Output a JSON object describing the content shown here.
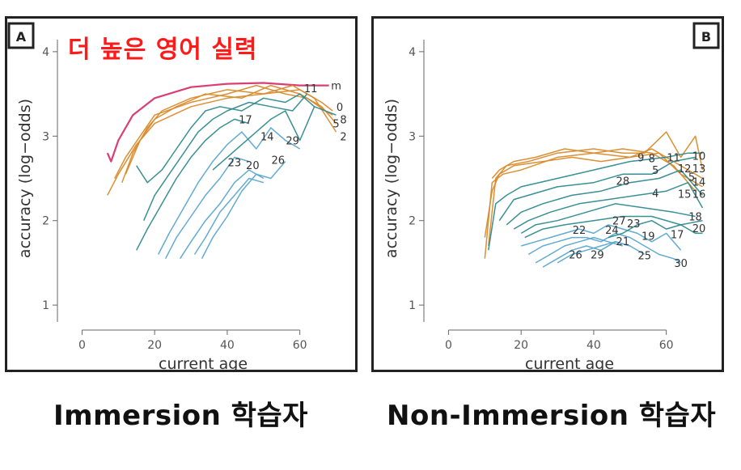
{
  "captions": {
    "left": "Immersion 학습자",
    "right": "Non-Immersion 학습자"
  },
  "annotation": "더 높은 영어 실력",
  "colors": {
    "orange": "#d98a2b",
    "teal": "#2e8a8f",
    "lightblue": "#5aa6cf",
    "red": "#d8346b",
    "axis": "#666666",
    "label": "#333333"
  },
  "chart_data": [
    {
      "type": "line",
      "panel_label": "A",
      "xlabel": "current age",
      "ylabel": "accuracy (log−odds)",
      "xlim": [
        -5,
        73
      ],
      "ylim": [
        0.8,
        4.2
      ],
      "xticks": [
        0,
        20,
        40,
        60
      ],
      "yticks": [
        1,
        2,
        3,
        4
      ],
      "series": [
        {
          "group": "red",
          "x": [
            7,
            8,
            10,
            14,
            20,
            30,
            40,
            50,
            60,
            68
          ],
          "y": [
            2.8,
            2.7,
            2.95,
            3.25,
            3.45,
            3.58,
            3.62,
            3.63,
            3.6,
            3.6
          ]
        },
        {
          "group": "orange",
          "x": [
            7,
            10,
            15,
            20,
            30,
            40,
            50,
            60,
            66,
            69
          ],
          "y": [
            2.3,
            2.55,
            2.9,
            3.15,
            3.35,
            3.45,
            3.5,
            3.55,
            3.4,
            3.3
          ]
        },
        {
          "group": "orange",
          "x": [
            9,
            12,
            16,
            20,
            30,
            40,
            48,
            56,
            62,
            67,
            69
          ],
          "y": [
            2.5,
            2.75,
            3.0,
            3.25,
            3.4,
            3.5,
            3.6,
            3.5,
            3.45,
            3.3,
            3.25
          ]
        },
        {
          "group": "orange",
          "x": [
            11,
            14,
            18,
            22,
            30,
            40,
            50,
            58,
            64,
            70
          ],
          "y": [
            2.45,
            2.8,
            3.1,
            3.3,
            3.45,
            3.55,
            3.5,
            3.6,
            3.45,
            3.05
          ]
        },
        {
          "group": "orange",
          "x": [
            12,
            16,
            20,
            26,
            34,
            44,
            52,
            60,
            66,
            70
          ],
          "y": [
            2.55,
            2.95,
            3.2,
            3.35,
            3.5,
            3.45,
            3.6,
            3.5,
            3.35,
            3.15
          ]
        },
        {
          "group": "teal",
          "x": [
            15,
            18,
            22,
            26,
            30,
            34,
            38,
            44,
            50,
            56,
            60,
            64,
            70
          ],
          "y": [
            2.65,
            2.45,
            2.6,
            2.85,
            3.1,
            3.3,
            3.35,
            3.3,
            3.45,
            3.4,
            3.5,
            3.35,
            3.25
          ]
        },
        {
          "group": "teal",
          "x": [
            17,
            20,
            24,
            28,
            32,
            36,
            40,
            46,
            52,
            58,
            62
          ],
          "y": [
            2.0,
            2.3,
            2.55,
            2.8,
            3.05,
            3.2,
            3.3,
            3.4,
            3.35,
            3.3,
            3.5
          ]
        },
        {
          "group": "teal",
          "x": [
            15,
            18,
            22,
            26,
            30,
            34,
            38,
            42,
            46
          ],
          "y": [
            1.65,
            1.9,
            2.2,
            2.5,
            2.75,
            2.95,
            3.1,
            3.2,
            3.15
          ]
        },
        {
          "group": "lightblue",
          "x": [
            21,
            24,
            28,
            32,
            36,
            40,
            44,
            48,
            52,
            56,
            60
          ],
          "y": [
            1.6,
            1.85,
            2.15,
            2.45,
            2.7,
            2.9,
            3.05,
            2.85,
            3.1,
            2.95,
            2.85
          ]
        },
        {
          "group": "lightblue",
          "x": [
            23,
            26,
            30,
            34,
            38,
            42,
            46
          ],
          "y": [
            1.55,
            1.8,
            2.05,
            2.3,
            2.5,
            2.75,
            2.7
          ]
        },
        {
          "group": "lightblue",
          "x": [
            27,
            30,
            34,
            38,
            42,
            46,
            50
          ],
          "y": [
            1.55,
            1.75,
            2.0,
            2.2,
            2.45,
            2.6,
            2.5
          ]
        },
        {
          "group": "lightblue",
          "x": [
            31,
            34,
            38,
            42,
            46,
            50
          ],
          "y": [
            1.6,
            1.8,
            2.1,
            2.3,
            2.5,
            2.45
          ]
        },
        {
          "group": "lightblue",
          "x": [
            33,
            36,
            40,
            44,
            48,
            52,
            56
          ],
          "y": [
            1.55,
            1.8,
            2.05,
            2.35,
            2.55,
            2.5,
            2.7
          ]
        },
        {
          "group": "teal",
          "x": [
            36,
            40,
            44,
            48,
            52,
            56,
            60,
            64
          ],
          "y": [
            2.6,
            2.75,
            2.9,
            3.05,
            3.2,
            3.3,
            2.95,
            3.35
          ]
        }
      ],
      "labels": [
        {
          "text": "m",
          "x": 70,
          "y": 3.6
        },
        {
          "text": "11",
          "x": 63,
          "y": 3.57
        },
        {
          "text": "0",
          "x": 71,
          "y": 3.35
        },
        {
          "text": "8",
          "x": 72,
          "y": 3.2
        },
        {
          "text": "5",
          "x": 70,
          "y": 3.15
        },
        {
          "text": "2",
          "x": 72,
          "y": 3.0
        },
        {
          "text": "17",
          "x": 45,
          "y": 3.2
        },
        {
          "text": "14",
          "x": 51,
          "y": 3.0
        },
        {
          "text": "29",
          "x": 58,
          "y": 2.95
        },
        {
          "text": "26",
          "x": 54,
          "y": 2.72
        },
        {
          "text": "23",
          "x": 42,
          "y": 2.69
        },
        {
          "text": "20",
          "x": 47,
          "y": 2.66
        }
      ]
    },
    {
      "type": "line",
      "panel_label": "B",
      "xlabel": "current age",
      "ylabel": "accuracy (log−odds)",
      "xlim": [
        -5,
        73
      ],
      "ylim": [
        0.8,
        4.2
      ],
      "xticks": [
        0,
        20,
        40,
        60
      ],
      "yticks": [
        1,
        2,
        3,
        4
      ],
      "series": [
        {
          "group": "orange",
          "x": [
            10,
            12,
            15,
            20,
            30,
            40,
            50,
            56,
            62,
            66,
            70
          ],
          "y": [
            1.55,
            2.45,
            2.55,
            2.6,
            2.75,
            2.8,
            2.75,
            2.85,
            2.7,
            2.6,
            2.5
          ]
        },
        {
          "group": "orange",
          "x": [
            11,
            13,
            16,
            22,
            30,
            40,
            48,
            54,
            60,
            64,
            68,
            70
          ],
          "y": [
            1.7,
            2.5,
            2.65,
            2.7,
            2.8,
            2.85,
            2.8,
            2.8,
            3.05,
            2.75,
            3.0,
            2.6
          ]
        },
        {
          "group": "orange",
          "x": [
            10,
            12,
            14,
            18,
            26,
            34,
            42,
            50,
            58,
            64,
            70
          ],
          "y": [
            1.8,
            2.35,
            2.55,
            2.65,
            2.7,
            2.75,
            2.7,
            2.75,
            2.8,
            2.55,
            2.4
          ]
        },
        {
          "group": "orange",
          "x": [
            12,
            14,
            18,
            24,
            32,
            40,
            48,
            56,
            62,
            68
          ],
          "y": [
            2.5,
            2.6,
            2.7,
            2.75,
            2.85,
            2.8,
            2.85,
            2.8,
            2.65,
            2.35
          ]
        },
        {
          "group": "teal",
          "x": [
            11,
            13,
            16,
            20,
            30,
            40,
            50,
            60,
            66,
            70
          ],
          "y": [
            1.65,
            2.2,
            2.3,
            2.4,
            2.5,
            2.6,
            2.7,
            2.75,
            2.8,
            2.8
          ]
        },
        {
          "group": "teal",
          "x": [
            14,
            18,
            22,
            30,
            40,
            48,
            56,
            62,
            68
          ],
          "y": [
            2.0,
            2.25,
            2.3,
            2.4,
            2.45,
            2.55,
            2.55,
            2.7,
            2.75
          ]
        },
        {
          "group": "teal",
          "x": [
            16,
            20,
            26,
            34,
            42,
            50,
            58,
            64,
            70
          ],
          "y": [
            1.95,
            2.1,
            2.2,
            2.3,
            2.35,
            2.45,
            2.5,
            2.6,
            2.3
          ]
        },
        {
          "group": "teal",
          "x": [
            18,
            22,
            28,
            36,
            44,
            52,
            60,
            66,
            70
          ],
          "y": [
            1.9,
            2.0,
            2.1,
            2.2,
            2.25,
            2.3,
            2.35,
            2.45,
            2.15
          ]
        },
        {
          "group": "teal",
          "x": [
            20,
            24,
            30,
            38,
            46,
            54,
            62,
            68
          ],
          "y": [
            1.85,
            1.95,
            2.0,
            2.1,
            2.2,
            2.15,
            2.1,
            2.05
          ]
        },
        {
          "group": "teal",
          "x": [
            21,
            26,
            32,
            40,
            48,
            56,
            64,
            70
          ],
          "y": [
            1.8,
            1.9,
            1.95,
            2.0,
            2.05,
            2.05,
            1.95,
            2.0
          ]
        },
        {
          "group": "lightblue",
          "x": [
            20,
            24,
            28,
            32,
            36,
            40,
            44,
            48,
            52,
            56,
            60,
            64
          ],
          "y": [
            1.7,
            1.75,
            1.8,
            1.85,
            1.9,
            1.85,
            1.95,
            1.9,
            1.85,
            1.75,
            1.85,
            1.65
          ]
        },
        {
          "group": "lightblue",
          "x": [
            22,
            26,
            30,
            34,
            38,
            42,
            46,
            50,
            54,
            58,
            62,
            64
          ],
          "y": [
            1.6,
            1.7,
            1.75,
            1.8,
            1.8,
            1.75,
            1.85,
            1.8,
            1.7,
            1.6,
            1.55,
            1.5
          ]
        },
        {
          "group": "lightblue",
          "x": [
            24,
            28,
            32,
            36,
            40,
            44,
            48
          ],
          "y": [
            1.5,
            1.6,
            1.7,
            1.75,
            1.8,
            1.75,
            1.7
          ]
        },
        {
          "group": "lightblue",
          "x": [
            26,
            30,
            34,
            38,
            42,
            46,
            50,
            54
          ],
          "y": [
            1.45,
            1.55,
            1.65,
            1.7,
            1.65,
            1.75,
            1.7,
            1.6
          ]
        },
        {
          "group": "lightblue",
          "x": [
            30,
            34,
            38,
            42,
            46,
            50
          ],
          "y": [
            1.5,
            1.6,
            1.65,
            1.7,
            1.75,
            1.7
          ]
        },
        {
          "group": "teal",
          "x": [
            44,
            48,
            52,
            56,
            60,
            64,
            68,
            70
          ],
          "y": [
            1.8,
            1.85,
            1.95,
            2.0,
            1.9,
            1.95,
            1.85,
            1.85
          ]
        }
      ],
      "labels": [
        {
          "text": "10",
          "x": 69,
          "y": 2.77
        },
        {
          "text": "9",
          "x": 53,
          "y": 2.75
        },
        {
          "text": "8",
          "x": 56,
          "y": 2.74
        },
        {
          "text": "11",
          "x": 62,
          "y": 2.75
        },
        {
          "text": "5",
          "x": 57,
          "y": 2.6
        },
        {
          "text": "12",
          "x": 65,
          "y": 2.62
        },
        {
          "text": "13",
          "x": 69,
          "y": 2.62
        },
        {
          "text": "5",
          "x": 67,
          "y": 2.52
        },
        {
          "text": "14",
          "x": 69,
          "y": 2.46
        },
        {
          "text": "28",
          "x": 48,
          "y": 2.47
        },
        {
          "text": "4",
          "x": 57,
          "y": 2.33
        },
        {
          "text": "15",
          "x": 65,
          "y": 2.32
        },
        {
          "text": "16",
          "x": 69,
          "y": 2.32
        },
        {
          "text": "18",
          "x": 68,
          "y": 2.05
        },
        {
          "text": "20",
          "x": 69,
          "y": 1.91
        },
        {
          "text": "27",
          "x": 47,
          "y": 2.0
        },
        {
          "text": "23",
          "x": 51,
          "y": 1.97
        },
        {
          "text": "22",
          "x": 36,
          "y": 1.89
        },
        {
          "text": "24",
          "x": 45,
          "y": 1.89
        },
        {
          "text": "19",
          "x": 55,
          "y": 1.82
        },
        {
          "text": "17",
          "x": 63,
          "y": 1.84
        },
        {
          "text": "21",
          "x": 48,
          "y": 1.76
        },
        {
          "text": "26",
          "x": 35,
          "y": 1.6
        },
        {
          "text": "29",
          "x": 41,
          "y": 1.6
        },
        {
          "text": "25",
          "x": 54,
          "y": 1.59
        },
        {
          "text": "30",
          "x": 64,
          "y": 1.5
        }
      ]
    }
  ]
}
